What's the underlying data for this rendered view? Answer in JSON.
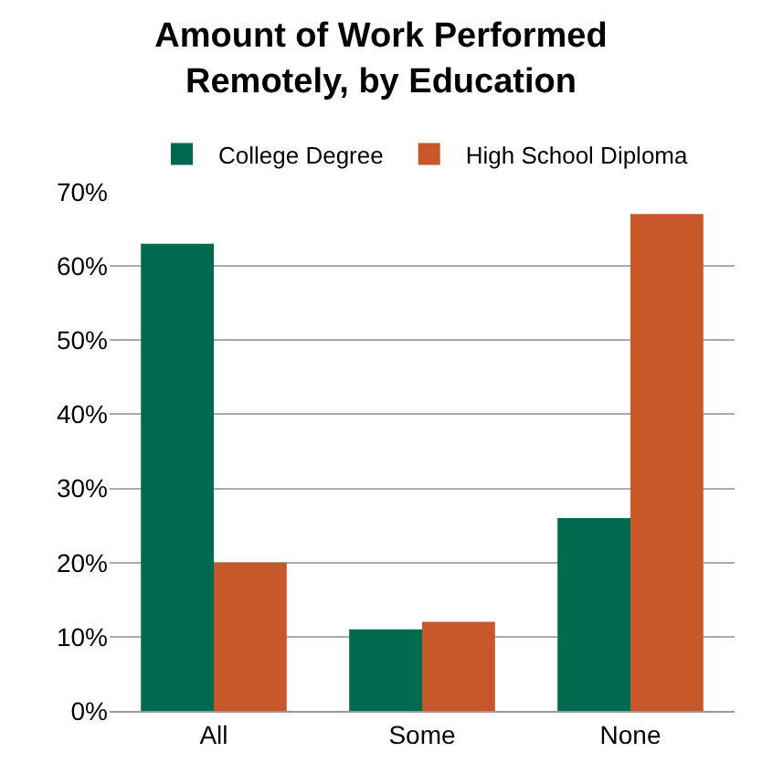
{
  "chart_data": {
    "type": "bar",
    "title": "Amount of Work Performed\nRemotely, by Education",
    "categories": [
      "All",
      "Some",
      "None"
    ],
    "series": [
      {
        "name": "College Degree",
        "color": "#006a4e",
        "values": [
          63,
          11,
          26
        ]
      },
      {
        "name": "High School Diploma",
        "color": "#c8582a",
        "values": [
          20,
          12,
          67
        ]
      }
    ],
    "ylim": [
      0,
      70
    ],
    "yticks": [
      {
        "value": 0,
        "label": "0%"
      },
      {
        "value": 10,
        "label": "10%"
      },
      {
        "value": 20,
        "label": "20%"
      },
      {
        "value": 30,
        "label": "30%"
      },
      {
        "value": 40,
        "label": "40%"
      },
      {
        "value": 50,
        "label": "50%"
      },
      {
        "value": 60,
        "label": "60%"
      },
      {
        "value": 70,
        "label": "70%"
      }
    ],
    "grid": "y",
    "legend": "top"
  }
}
